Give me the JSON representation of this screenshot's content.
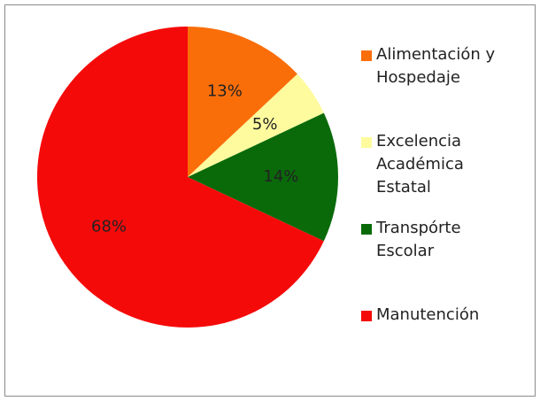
{
  "chart_data": {
    "type": "pie",
    "categories": [
      "Alimentación y Hospedaje",
      "Excelencia Académica Estatal",
      "Transpórte Escolar",
      "Manutención"
    ],
    "values": [
      13,
      5,
      14,
      68
    ],
    "value_labels": [
      "13%",
      "5%",
      "14%",
      "68%"
    ],
    "colors": [
      "#fa6e0a",
      "#fdfb9e",
      "#0a6a0a",
      "#f50a0a"
    ],
    "legend": "right"
  }
}
